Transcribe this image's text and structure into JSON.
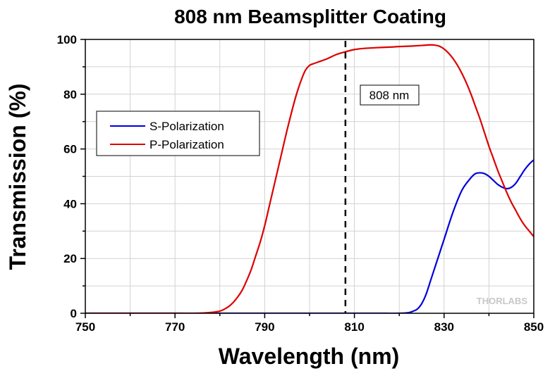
{
  "chart_data": {
    "type": "line",
    "title": "808 nm Beamsplitter Coating",
    "xlabel": "Wavelength (nm)",
    "ylabel": "Transmission (%)",
    "xlim": [
      750,
      850
    ],
    "ylim": [
      0,
      100
    ],
    "xticks": [
      "750",
      "770",
      "790",
      "810",
      "830",
      "850"
    ],
    "yticks": [
      "0",
      "20",
      "40",
      "60",
      "80",
      "100"
    ],
    "grid": true,
    "legend_position": "upper-left",
    "annotation": {
      "x": 808,
      "label": "808 nm",
      "style": "dashed-vertical-line"
    },
    "watermark": "THORLABS",
    "colors": {
      "s": "#0000dd",
      "p": "#dd0000",
      "grid": "#d2d2d2",
      "axis": "#000000"
    },
    "series": [
      {
        "name": "S-Polarization",
        "x": [
          750,
          760,
          770,
          780,
          790,
          800,
          810,
          815,
          820,
          822,
          823,
          824,
          825,
          826,
          827,
          828,
          830,
          832,
          834,
          836,
          837,
          838,
          839,
          840,
          841,
          842,
          843,
          844,
          845,
          846,
          847,
          848,
          849,
          850
        ],
        "y": [
          0,
          0,
          0,
          0,
          0,
          0,
          0,
          0,
          0,
          0.2,
          0.7,
          1.5,
          3.5,
          7,
          12,
          17,
          27,
          37,
          45,
          49.5,
          51,
          51.3,
          51,
          50,
          48.5,
          47,
          46,
          45.5,
          46,
          47.5,
          50,
          52.5,
          54.5,
          56
        ]
      },
      {
        "name": "P-Polarization",
        "x": [
          750,
          760,
          770,
          775,
          778,
          780,
          781,
          782,
          783,
          784,
          785,
          786,
          787,
          788,
          789,
          790,
          791,
          792,
          793,
          794,
          795,
          796,
          797,
          798,
          799,
          800,
          801,
          802,
          804,
          806,
          808,
          810,
          812,
          815,
          818,
          820,
          823,
          825,
          827,
          828,
          829,
          830,
          831,
          832,
          833,
          834,
          835,
          836,
          837,
          838,
          839,
          840,
          841,
          842,
          843,
          844,
          845,
          846,
          847,
          848,
          849,
          850
        ],
        "y": [
          0,
          0,
          0,
          0,
          0.3,
          0.8,
          1.5,
          2.5,
          4,
          6,
          8.5,
          12,
          16,
          21,
          26,
          32,
          39,
          46,
          53,
          60,
          67,
          73.5,
          79.5,
          84.5,
          88.5,
          90.5,
          91.2,
          91.8,
          93,
          94.5,
          95.5,
          96.3,
          96.7,
          97,
          97.2,
          97.4,
          97.6,
          97.8,
          98,
          97.9,
          97.5,
          96.5,
          95,
          93,
          90.5,
          87.5,
          84,
          80,
          75.5,
          71,
          66,
          61,
          56.5,
          52,
          48,
          44,
          40.5,
          37.5,
          34.5,
          32,
          30,
          28
        ]
      }
    ]
  }
}
